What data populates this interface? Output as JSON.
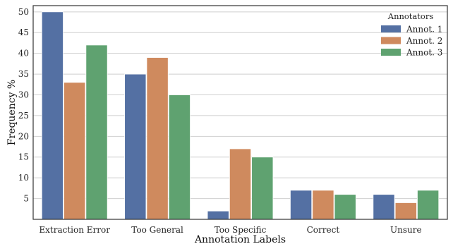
{
  "chart_data": {
    "type": "bar",
    "title": "",
    "xlabel": "Annotation Labels",
    "ylabel": "Frequency %",
    "categories": [
      "Extraction Error",
      "Too General",
      "Too Specific",
      "Correct",
      "Unsure"
    ],
    "series": [
      {
        "name": "Annot. 1",
        "color": "#5470a3",
        "values": [
          50,
          35,
          2,
          7,
          6
        ]
      },
      {
        "name": "Annot. 2",
        "color": "#cf8a5e",
        "values": [
          33,
          39,
          17,
          7,
          4
        ]
      },
      {
        "name": "Annot. 3",
        "color": "#5fa270",
        "values": [
          42,
          30,
          15,
          6,
          7
        ]
      }
    ],
    "ylim": [
      0,
      51.5
    ],
    "yticks": [
      5,
      10,
      15,
      20,
      25,
      30,
      35,
      40,
      45,
      50
    ],
    "grid": "horizontal",
    "legend": {
      "title": "Annotators",
      "position": "top-right"
    }
  }
}
